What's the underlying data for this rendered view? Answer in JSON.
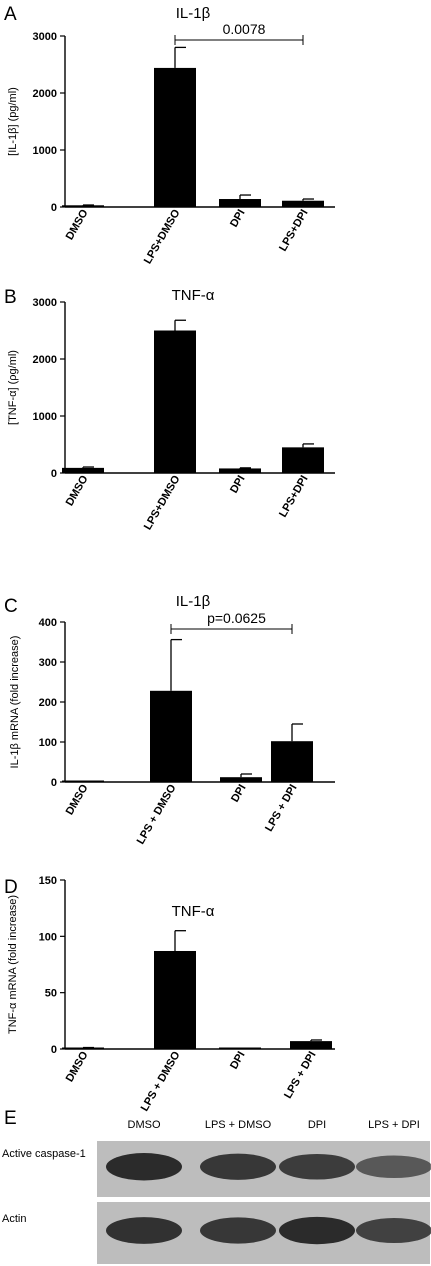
{
  "chart_data": [
    {
      "panel": "A",
      "type": "bar",
      "title": "IL-1β",
      "ylabel": "[IL-1β] (pg/ml)",
      "categories": [
        "DMSO",
        "LPS+DMSO",
        "DPI",
        "LPS+DPI"
      ],
      "values": [
        30,
        2440,
        140,
        110
      ],
      "errors": [
        5,
        360,
        70,
        30
      ],
      "ylim": [
        0,
        3000
      ],
      "yticks": [
        0,
        1000,
        2000,
        3000
      ],
      "yticks_labels": [
        "0",
        "1000",
        "2000",
        "3000"
      ],
      "comparison": {
        "from": 1,
        "to": 3,
        "label": "0.0078"
      }
    },
    {
      "panel": "B",
      "type": "bar",
      "title": "TNF-α",
      "ylabel": "[TNF-α] (ρg/ml)",
      "categories": [
        "DMSO",
        "LPS+DMSO",
        "DPI",
        "LPS+DPI"
      ],
      "values": [
        90,
        2500,
        80,
        450
      ],
      "errors": [
        15,
        180,
        10,
        60
      ],
      "ylim": [
        0,
        3000
      ],
      "yticks": [
        0,
        1000,
        2000,
        3000
      ],
      "yticks_labels": [
        "0",
        "1000",
        "2000",
        "3000"
      ]
    },
    {
      "panel": "C",
      "type": "bar",
      "title": "IL-1β",
      "ylabel": "IL-1β mRNA (fold increase)",
      "categories": [
        "DMSO",
        "LPS + DMSO",
        "DPI",
        "LPS + DPI"
      ],
      "values": [
        1,
        228,
        12,
        102
      ],
      "errors": [
        0.5,
        128,
        8,
        43
      ],
      "ylim": [
        0,
        400
      ],
      "yticks": [
        0,
        100,
        200,
        300,
        400
      ],
      "yticks_labels": [
        "0",
        "100",
        "200",
        "300",
        "400"
      ],
      "comparison": {
        "from": 1,
        "to": 3,
        "label": "p=0.0625"
      }
    },
    {
      "panel": "D",
      "type": "bar",
      "title": "TNF-α",
      "ylabel": "TNF-α mRNA (fold increase)",
      "categories": [
        "DMSO",
        "LPS + DMSO",
        "DPI",
        "LPS + DPI"
      ],
      "values": [
        1,
        87,
        0.5,
        7
      ],
      "errors": [
        0.3,
        18,
        0.2,
        1
      ],
      "ylim": [
        0,
        150
      ],
      "yticks": [
        0,
        50,
        100,
        150
      ],
      "yticks_labels": [
        "0",
        "50",
        "100",
        "150"
      ]
    }
  ],
  "blot": {
    "panel": "E",
    "lanes": [
      "DMSO",
      "LPS + DMSO",
      "DPI",
      "LPS + DPI"
    ],
    "rows": [
      {
        "label": "Active caspase-1",
        "intensity": [
          0.95,
          0.85,
          0.8,
          0.55
        ]
      },
      {
        "label": "Actin",
        "intensity": [
          0.9,
          0.85,
          0.95,
          0.75
        ]
      }
    ]
  },
  "colors": {
    "bar": "#000000",
    "blot_bg": "#bdbdbd",
    "band": "#1e1e1e"
  }
}
